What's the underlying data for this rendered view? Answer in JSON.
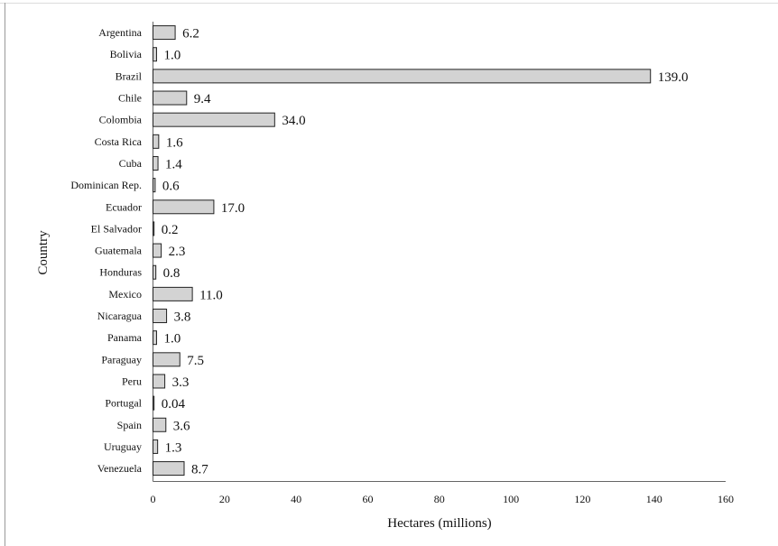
{
  "colors": {
    "bar_fill": "#d3d3d3",
    "bar_stroke": "#222222",
    "axis": "#666666",
    "frame": "#cccccc"
  },
  "chart_data": {
    "type": "bar",
    "orientation": "horizontal",
    "title": "",
    "xlabel": "Hectares (millions)",
    "ylabel": "Country",
    "xlim": [
      0,
      160
    ],
    "xticks": [
      0,
      20,
      40,
      60,
      80,
      100,
      120,
      140,
      160
    ],
    "grid": false,
    "categories": [
      "Argentina",
      "Bolivia",
      "Brazil",
      "Chile",
      "Colombia",
      "Costa Rica",
      "Cuba",
      "Dominican Rep.",
      "Ecuador",
      "El Salvador",
      "Guatemala",
      "Honduras",
      "Mexico",
      "Nicaragua",
      "Panama",
      "Paraguay",
      "Peru",
      "Portugal",
      "Spain",
      "Uruguay",
      "Venezuela"
    ],
    "values": [
      6.2,
      1.0,
      139.0,
      9.4,
      34.0,
      1.6,
      1.4,
      0.6,
      17.0,
      0.2,
      2.3,
      0.8,
      11.0,
      3.8,
      1.0,
      7.5,
      3.3,
      0.04,
      3.6,
      1.3,
      8.7
    ],
    "value_labels": [
      "6.2",
      "1.0",
      "139.0",
      "9.4",
      "34.0",
      "1.6",
      "1.4",
      "0.6",
      "17.0",
      "0.2",
      "2.3",
      "0.8",
      "11.0",
      "3.8",
      "1.0",
      "7.5",
      "3.3",
      "0.04",
      "3.6",
      "1.3",
      "8.7"
    ]
  }
}
